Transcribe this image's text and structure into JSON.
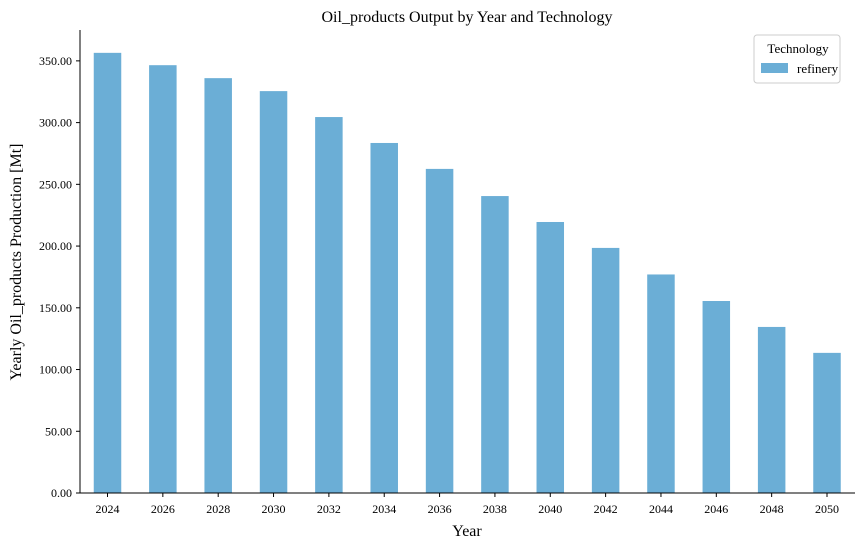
{
  "chart_data": {
    "type": "bar",
    "title": "Oil_products Output by Year and Technology",
    "xlabel": "Year",
    "ylabel": "Yearly Oil_products Production [Mt]",
    "categories": [
      "2024",
      "2026",
      "2028",
      "2030",
      "2032",
      "2034",
      "2036",
      "2038",
      "2040",
      "2042",
      "2044",
      "2046",
      "2048",
      "2050"
    ],
    "series": [
      {
        "name": "refinery",
        "color": "#6baed6",
        "values": [
          356.5,
          346.5,
          336.0,
          325.5,
          304.5,
          283.5,
          262.5,
          240.5,
          219.5,
          198.5,
          177.0,
          155.5,
          134.5,
          113.5
        ]
      }
    ],
    "ylim": [
      0,
      375
    ],
    "yticks": [
      0,
      50,
      100,
      150,
      200,
      250,
      300,
      350
    ],
    "ytick_labels": [
      "0.00",
      "50.00",
      "100.00",
      "150.00",
      "200.00",
      "250.00",
      "300.00",
      "350.00"
    ],
    "legend": {
      "title": "Technology",
      "placement": "top-right"
    },
    "grid": false
  }
}
